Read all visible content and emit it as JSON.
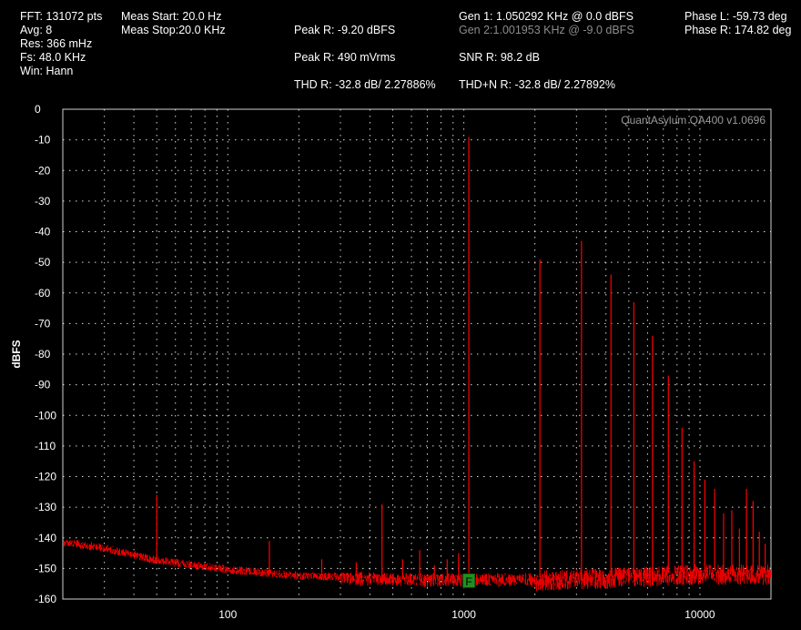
{
  "header": {
    "fft": "FFT: 131072 pts",
    "avg": "Avg: 8",
    "res": "Res: 366 mHz",
    "fs": "Fs: 48.0 KHz",
    "win": "Win: Hann",
    "meas_start": "Meas Start: 20.0 Hz",
    "meas_stop": "Meas Stop:20.0 KHz",
    "peak_dbfs": "Peak R: -9.20 dBFS",
    "peak_mv": "Peak R: 490 mVrms",
    "thd": "THD R: -32.8 dB/ 2.27886%",
    "gen1": "Gen 1: 1.050292 KHz @ 0.0  dBFS",
    "gen2": "Gen 2:1.001953 KHz @ -9.0  dBFS",
    "snr": "SNR R: 98.2 dB",
    "thdn": "THD+N R: -32.8 dB/ 2.27892%",
    "phase_l": "Phase L: -59.73 deg",
    "phase_r": "Phase R: 174.82 deg"
  },
  "colors": {
    "background": "#000000",
    "trace": "#ff0000",
    "grid": "#ffffff",
    "marker": "#1f8f1f"
  },
  "marker": {
    "label": "F",
    "x": 1050,
    "y": -154
  },
  "chart_data": {
    "type": "line",
    "title": "",
    "brand": "QuantAsylum QA400 v1.0696",
    "xlabel": "",
    "ylabel": "dBFS",
    "xscale": "log",
    "xlim": [
      20,
      20000
    ],
    "ylim": [
      -160,
      0
    ],
    "y_ticks": [
      0,
      -10,
      -20,
      -30,
      -40,
      -50,
      -60,
      -70,
      -80,
      -90,
      -100,
      -110,
      -120,
      -130,
      -140,
      -150,
      -160
    ],
    "x_ticks": [
      100,
      1000,
      10000
    ],
    "x_tick_labels": [
      "100",
      "1000",
      "10000"
    ],
    "grid": true,
    "series": [
      {
        "noise_floor": [
          [
            20,
            -141
          ],
          [
            30,
            -143
          ],
          [
            50,
            -147
          ],
          [
            100,
            -150
          ],
          [
            200,
            -152
          ],
          [
            500,
            -153
          ],
          [
            1000,
            -153
          ],
          [
            2000,
            -153
          ],
          [
            5000,
            -152
          ],
          [
            10000,
            -151
          ],
          [
            20000,
            -151
          ]
        ],
        "peaks": [
          {
            "x": 1050,
            "y": -9
          },
          {
            "x": 2100,
            "y": -49
          },
          {
            "x": 3150,
            "y": -43
          },
          {
            "x": 4200,
            "y": -54
          },
          {
            "x": 5250,
            "y": -63
          },
          {
            "x": 6300,
            "y": -74
          },
          {
            "x": 7350,
            "y": -87
          },
          {
            "x": 8400,
            "y": -104
          },
          {
            "x": 9450,
            "y": -115
          },
          {
            "x": 10500,
            "y": -121
          },
          {
            "x": 11550,
            "y": -124
          },
          {
            "x": 12600,
            "y": -132
          },
          {
            "x": 13650,
            "y": -131
          },
          {
            "x": 14700,
            "y": -137
          },
          {
            "x": 15750,
            "y": -124
          },
          {
            "x": 16800,
            "y": -128
          },
          {
            "x": 17850,
            "y": -138
          },
          {
            "x": 18900,
            "y": -142
          },
          {
            "x": 50,
            "y": -126
          },
          {
            "x": 150,
            "y": -141
          },
          {
            "x": 250,
            "y": -147
          },
          {
            "x": 350,
            "y": -148
          },
          {
            "x": 450,
            "y": -129
          },
          {
            "x": 550,
            "y": -147
          },
          {
            "x": 650,
            "y": -144
          },
          {
            "x": 750,
            "y": -149
          },
          {
            "x": 850,
            "y": -147
          },
          {
            "x": 950,
            "y": -145
          }
        ]
      }
    ]
  }
}
